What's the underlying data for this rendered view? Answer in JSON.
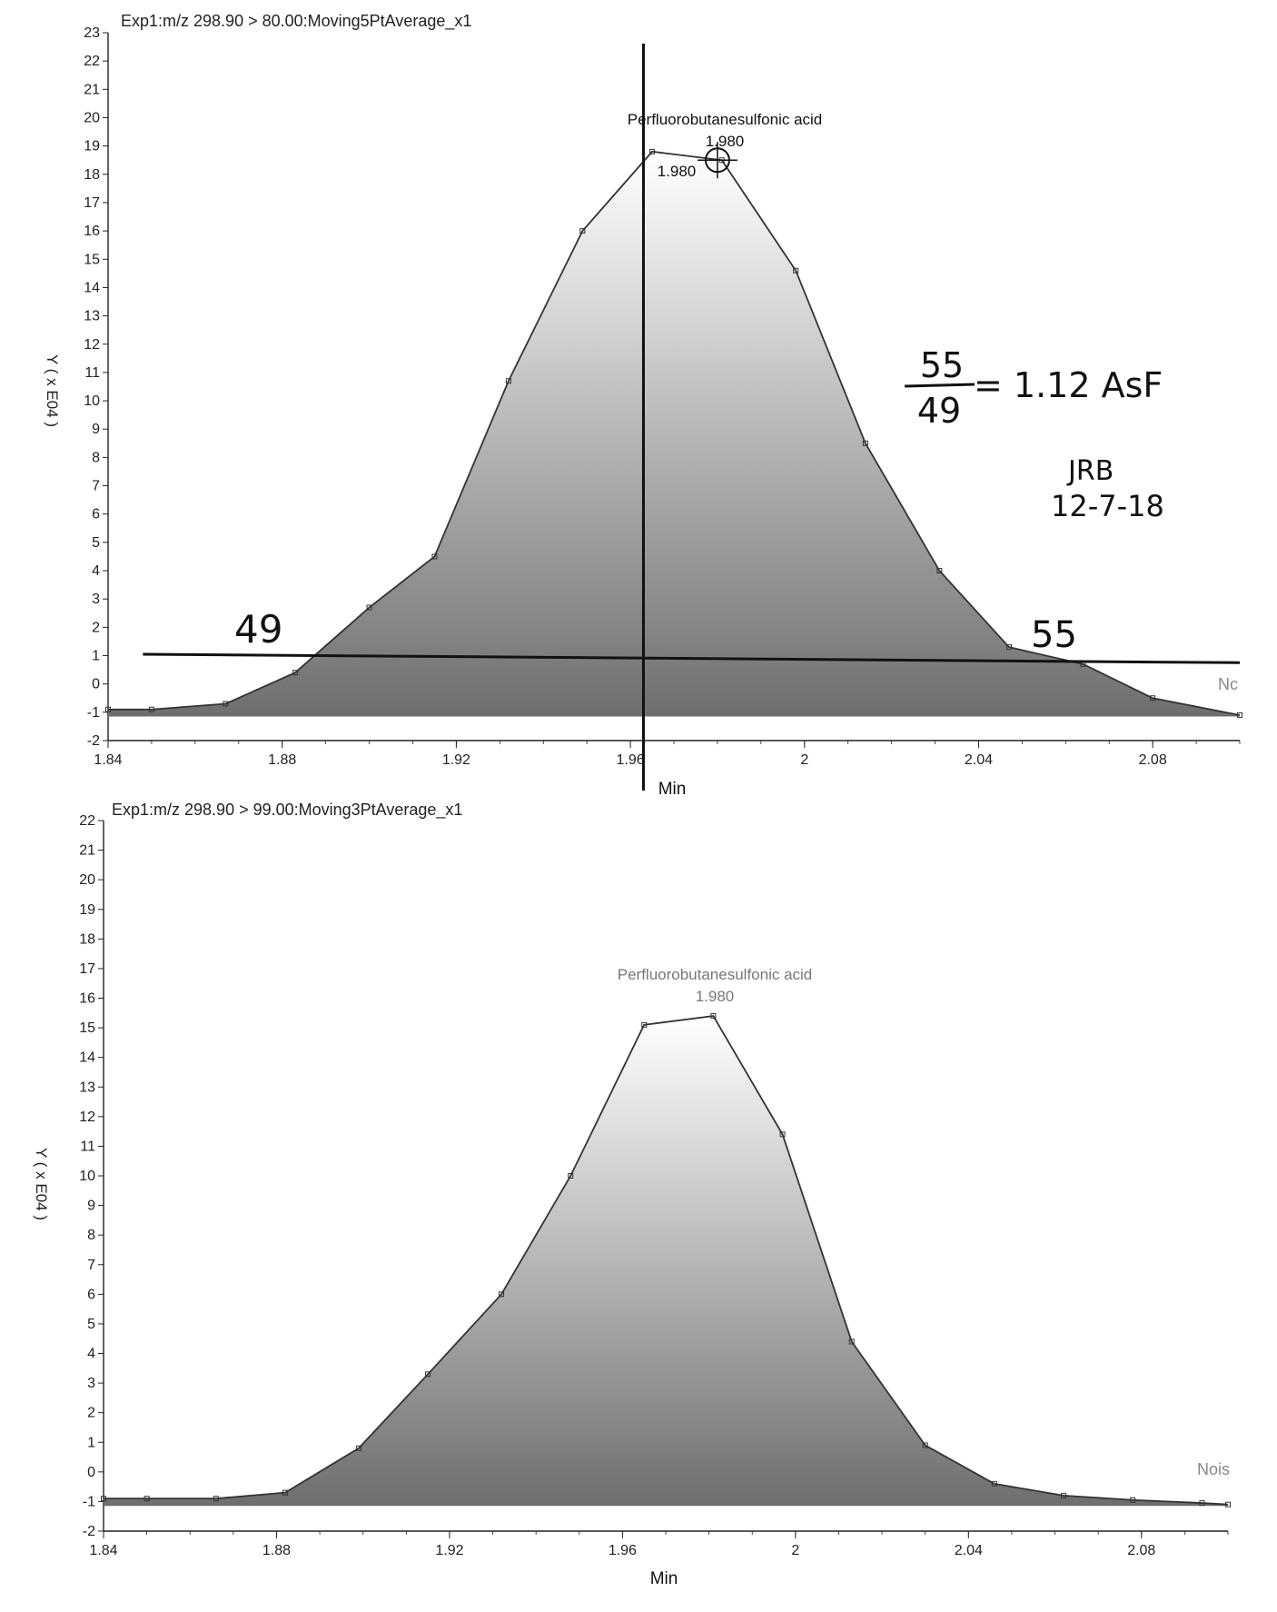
{
  "colors": {
    "trace": "#333333",
    "fill_top": "#ffffff",
    "fill_bottom": "#6e6e6e",
    "axis": "#222222",
    "annotation": "#111111"
  },
  "chart_data": [
    {
      "type": "area",
      "title": "Exp1:m/z 298.90 > 80.00:Moving5PtAverage_x1",
      "xlabel": "Min",
      "ylabel": "Y ( x E04 )",
      "xlim": [
        1.84,
        2.1
      ],
      "ylim": [
        -2,
        23
      ],
      "x_ticks": [
        "1.84",
        "1.88",
        "1.92",
        "1.96",
        "2",
        "2.04",
        "2.08"
      ],
      "y_ticks": [
        "-2",
        "-1",
        "0",
        "1",
        "2",
        "3",
        "4",
        "5",
        "6",
        "7",
        "8",
        "9",
        "10",
        "11",
        "12",
        "13",
        "14",
        "15",
        "16",
        "17",
        "18",
        "19",
        "20",
        "21",
        "22",
        "23"
      ],
      "series": [
        {
          "x": [
            1.84,
            1.85,
            1.867,
            1.883,
            1.9,
            1.915,
            1.932,
            1.949,
            1.965,
            1.981,
            1.998,
            2.014,
            2.031,
            2.047,
            2.064,
            2.08,
            2.1
          ],
          "y": [
            -0.9,
            -0.9,
            -0.7,
            0.4,
            2.7,
            4.5,
            10.7,
            16.0,
            18.8,
            18.5,
            14.6,
            8.5,
            4.0,
            1.3,
            0.7,
            -0.5,
            -1.1
          ]
        }
      ],
      "peak_label": "Perfluorobutanesulfonic acid",
      "peak_rt": "1.980",
      "peak_rt_marker": "1.980",
      "side_label": "Nc",
      "annotations": {
        "left_width": "49",
        "right_width": "55",
        "fraction_numerator": "55",
        "fraction_denominator": "49",
        "fraction_result": "= 1.12  AsF",
        "initials": "JRB",
        "date": "12-7-18"
      }
    },
    {
      "type": "area",
      "title": "Exp1:m/z 298.90 > 99.00:Moving3PtAverage_x1",
      "xlabel": "Min",
      "ylabel": "Y ( x E04 )",
      "xlim": [
        1.84,
        2.1
      ],
      "ylim": [
        -2,
        22
      ],
      "x_ticks": [
        "1.84",
        "1.88",
        "1.92",
        "1.96",
        "2",
        "2.04",
        "2.08"
      ],
      "y_ticks": [
        "-2",
        "-1",
        "0",
        "1",
        "2",
        "3",
        "4",
        "5",
        "6",
        "7",
        "8",
        "9",
        "10",
        "11",
        "12",
        "13",
        "14",
        "15",
        "16",
        "17",
        "18",
        "19",
        "20",
        "21",
        "22"
      ],
      "series": [
        {
          "x": [
            1.84,
            1.85,
            1.866,
            1.882,
            1.899,
            1.915,
            1.932,
            1.948,
            1.965,
            1.981,
            1.997,
            2.013,
            2.03,
            2.046,
            2.062,
            2.078,
            2.094,
            2.1
          ],
          "y": [
            -0.9,
            -0.9,
            -0.9,
            -0.7,
            0.8,
            3.3,
            6.0,
            10.0,
            15.1,
            15.4,
            11.4,
            4.4,
            0.9,
            -0.4,
            -0.8,
            -0.95,
            -1.05,
            -1.1
          ]
        }
      ],
      "peak_label": "Perfluorobutanesulfonic acid",
      "peak_rt": "1.980",
      "side_label": "Nois"
    }
  ]
}
